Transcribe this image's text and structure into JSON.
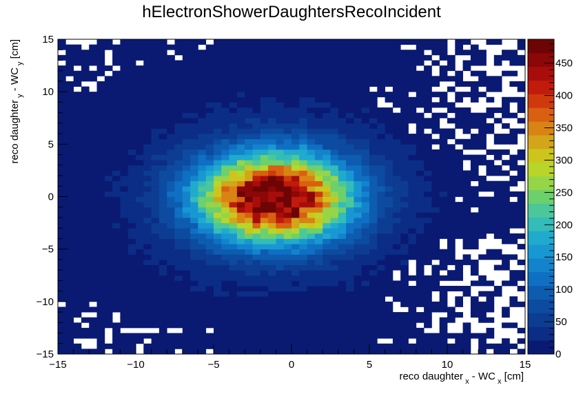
{
  "chart_data": {
    "type": "heatmap",
    "title": "hElectronShowerDaughtersRecoIncident",
    "xlabel": {
      "main": "reco daughter",
      "sub": "x",
      "rest": " - WC",
      "sub2": "x",
      "unit": " [cm]"
    },
    "ylabel": {
      "main": "reco daughter",
      "sub": "y",
      "rest": " - WC",
      "sub2": "y",
      "unit": " [cm]"
    },
    "xlim": [
      -15,
      15
    ],
    "ylim": [
      -15,
      15
    ],
    "nbins_x": 60,
    "nbins_y": 60,
    "x_ticks": [
      -15,
      -10,
      -5,
      0,
      5,
      10,
      15
    ],
    "x_tick_labels": [
      "−15",
      "−10",
      "−5",
      "0",
      "5",
      "10",
      "15"
    ],
    "y_ticks": [
      -15,
      -10,
      -5,
      0,
      5,
      10,
      15
    ],
    "y_tick_labels": [
      "−15",
      "−10",
      "−5",
      "0",
      "5",
      "10",
      "15"
    ],
    "z_range": [
      0,
      487
    ],
    "z_ticks": [
      0,
      50,
      100,
      150,
      200,
      250,
      300,
      350,
      400,
      450
    ],
    "z_tick_labels": [
      "0",
      "50",
      "100",
      "150",
      "200",
      "250",
      "300",
      "350",
      "400",
      "450"
    ],
    "palette": [
      "#0a1a73",
      "#0b2d85",
      "#0c3d92",
      "#0c4ba0",
      "#0d5cb0",
      "#0f6fc2",
      "#1384cc",
      "#1898d2",
      "#20aacd",
      "#33bcb8",
      "#4cc79a",
      "#6cd06c",
      "#96d548",
      "#b8d62a",
      "#cdc51e",
      "#d3a51a",
      "#d98315",
      "#d96010",
      "#cf3a0c",
      "#c01b0b",
      "#a90d0b",
      "#8c0707",
      "#6e0404"
    ],
    "peak": {
      "x": -1.1,
      "y": -0.1,
      "value": 487
    },
    "spread": {
      "sigma_x": 3.4,
      "sigma_y": 2.9
    },
    "empty_bins_note_percent_at_x_gt_5": 22
  }
}
